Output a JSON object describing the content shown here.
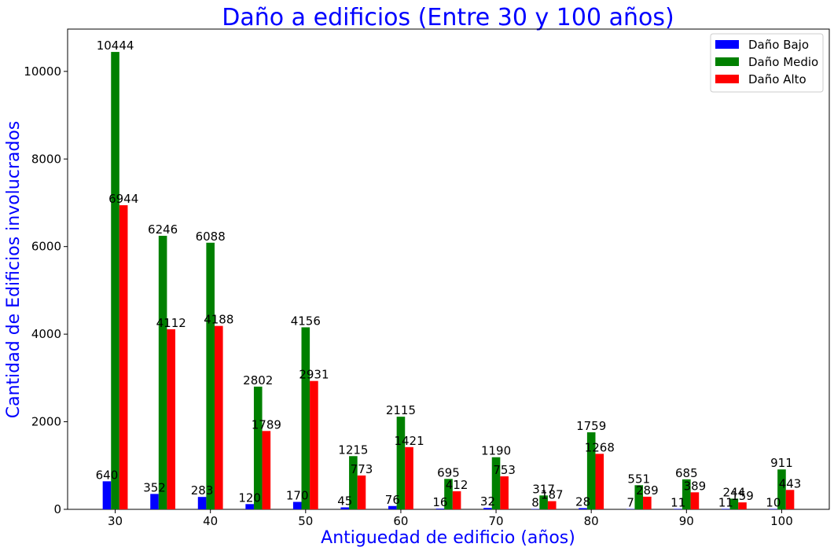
{
  "chart_data": {
    "type": "bar",
    "title": "Daño a edificios (Entre 30 y 100 años)",
    "xlabel": "Antiguedad de edificio (años)",
    "ylabel": "Cantidad de Edificios involucrados",
    "categories": [
      30,
      35,
      40,
      45,
      50,
      55,
      60,
      65,
      70,
      75,
      80,
      85,
      90,
      95,
      100
    ],
    "x_ticks": [
      "30",
      "40",
      "50",
      "60",
      "70",
      "80",
      "90",
      "100"
    ],
    "y_ticks": [
      "0",
      "2000",
      "4000",
      "6000",
      "8000",
      "10000"
    ],
    "ylim": [
      0,
      10966
    ],
    "xlim": [
      25,
      105
    ],
    "grid": false,
    "legend_position": "top-right",
    "series": [
      {
        "name": "Daño Bajo",
        "color": "#0000ff",
        "values": [
          640,
          352,
          283,
          120,
          170,
          45,
          76,
          16,
          32,
          8,
          28,
          7,
          11,
          11,
          10
        ]
      },
      {
        "name": "Daño Medio",
        "color": "#008000",
        "values": [
          10444,
          6246,
          6088,
          2802,
          4156,
          1215,
          2115,
          695,
          1190,
          317,
          1759,
          551,
          685,
          244,
          911
        ]
      },
      {
        "name": "Daño Alto",
        "color": "#ff0000",
        "values": [
          6944,
          4112,
          4188,
          1789,
          2931,
          773,
          1421,
          412,
          753,
          187,
          1268,
          289,
          389,
          159,
          443
        ]
      }
    ]
  }
}
